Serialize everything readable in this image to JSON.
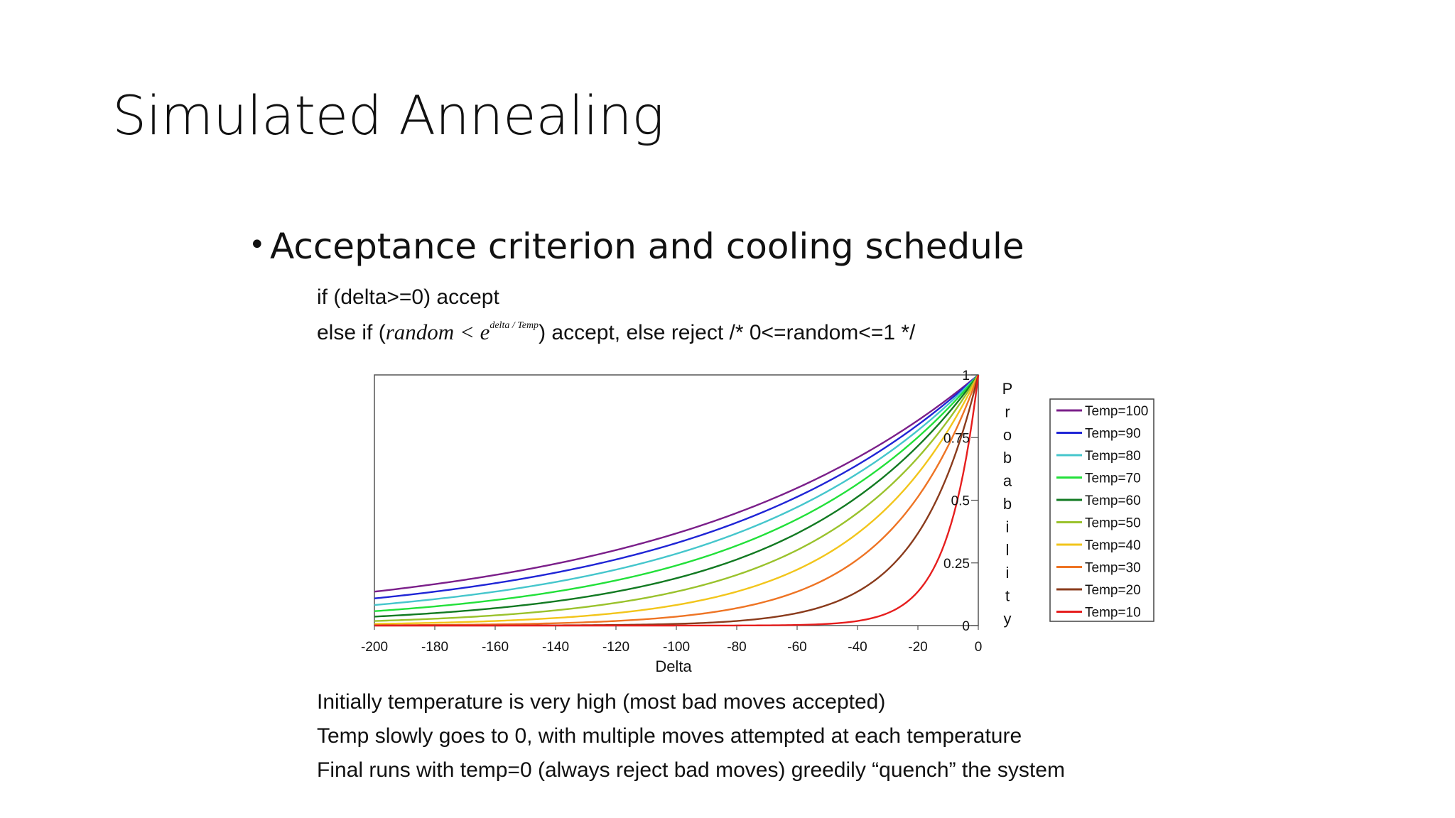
{
  "slide": {
    "title": "Simulated Annealing",
    "bullet": "Acceptance criterion and cooling schedule",
    "code_line1": "if (delta>=0) accept",
    "code_line2_prefix": "else if (",
    "code_line2_math": "random < e",
    "code_line2_sup": "delta / Temp",
    "code_line2_suffix": ") accept, else reject /* 0<=random<=1 */",
    "notes": [
      "Initially temperature is very high (most bad moves accepted)",
      "Temp slowly goes to 0, with multiple moves attempted at each temperature",
      "Final runs with temp=0 (always reject bad moves) greedily “quench” the system"
    ]
  },
  "chart_data": {
    "type": "line",
    "title": "",
    "xlabel": "Delta",
    "ylabel": "Probability",
    "xlim": [
      -200,
      0
    ],
    "ylim": [
      0,
      1
    ],
    "x_ticks": [
      "-200",
      "-180",
      "-160",
      "-140",
      "-120",
      "-100",
      "-80",
      "-60",
      "-40",
      "-20",
      "0"
    ],
    "y_ticks": [
      "0",
      "0.25",
      "0.5",
      "0.75",
      "1"
    ],
    "function": "exp(delta/Temp)",
    "x": [
      -200,
      -180,
      -160,
      -140,
      -120,
      -100,
      -80,
      -60,
      -40,
      -20,
      0
    ],
    "series": [
      {
        "name": "Temp=100",
        "temp": 100,
        "color": "#7b1f8a",
        "values": [
          0.135,
          0.165,
          0.202,
          0.247,
          0.301,
          0.368,
          0.449,
          0.549,
          0.67,
          0.819,
          1.0
        ]
      },
      {
        "name": "Temp=90",
        "temp": 90,
        "color": "#1f25d6",
        "values": [
          0.108,
          0.135,
          0.169,
          0.211,
          0.264,
          0.329,
          0.411,
          0.513,
          0.641,
          0.801,
          1.0
        ]
      },
      {
        "name": "Temp=80",
        "temp": 80,
        "color": "#45c6cc",
        "values": [
          0.082,
          0.105,
          0.135,
          0.174,
          0.223,
          0.287,
          0.368,
          0.472,
          0.607,
          0.779,
          1.0
        ]
      },
      {
        "name": "Temp=70",
        "temp": 70,
        "color": "#22e03a",
        "values": [
          0.057,
          0.076,
          0.102,
          0.135,
          0.18,
          0.24,
          0.319,
          0.424,
          0.565,
          0.751,
          1.0
        ]
      },
      {
        "name": "Temp=60",
        "temp": 60,
        "color": "#127a22",
        "values": [
          0.036,
          0.05,
          0.069,
          0.097,
          0.135,
          0.189,
          0.264,
          0.368,
          0.513,
          0.717,
          1.0
        ]
      },
      {
        "name": "Temp=50",
        "temp": 50,
        "color": "#9ac22c",
        "values": [
          0.018,
          0.027,
          0.041,
          0.061,
          0.091,
          0.135,
          0.202,
          0.301,
          0.449,
          0.67,
          1.0
        ]
      },
      {
        "name": "Temp=40",
        "temp": 40,
        "color": "#f2c51b",
        "values": [
          0.007,
          0.011,
          0.018,
          0.03,
          0.05,
          0.082,
          0.135,
          0.223,
          0.368,
          0.607,
          1.0
        ]
      },
      {
        "name": "Temp=30",
        "temp": 30,
        "color": "#ee7424",
        "values": [
          0.001,
          0.002,
          0.005,
          0.009,
          0.018,
          0.036,
          0.069,
          0.135,
          0.264,
          0.513,
          1.0
        ]
      },
      {
        "name": "Temp=20",
        "temp": 20,
        "color": "#8a3b1c",
        "values": [
          0.0,
          0.0,
          0.0,
          0.001,
          0.002,
          0.007,
          0.018,
          0.05,
          0.135,
          0.368,
          1.0
        ]
      },
      {
        "name": "Temp=10",
        "temp": 10,
        "color": "#e61e1e",
        "values": [
          0.0,
          0.0,
          0.0,
          0.0,
          0.0,
          0.0,
          0.0,
          0.002,
          0.018,
          0.135,
          1.0
        ]
      }
    ],
    "grid": false,
    "legend": "right"
  }
}
